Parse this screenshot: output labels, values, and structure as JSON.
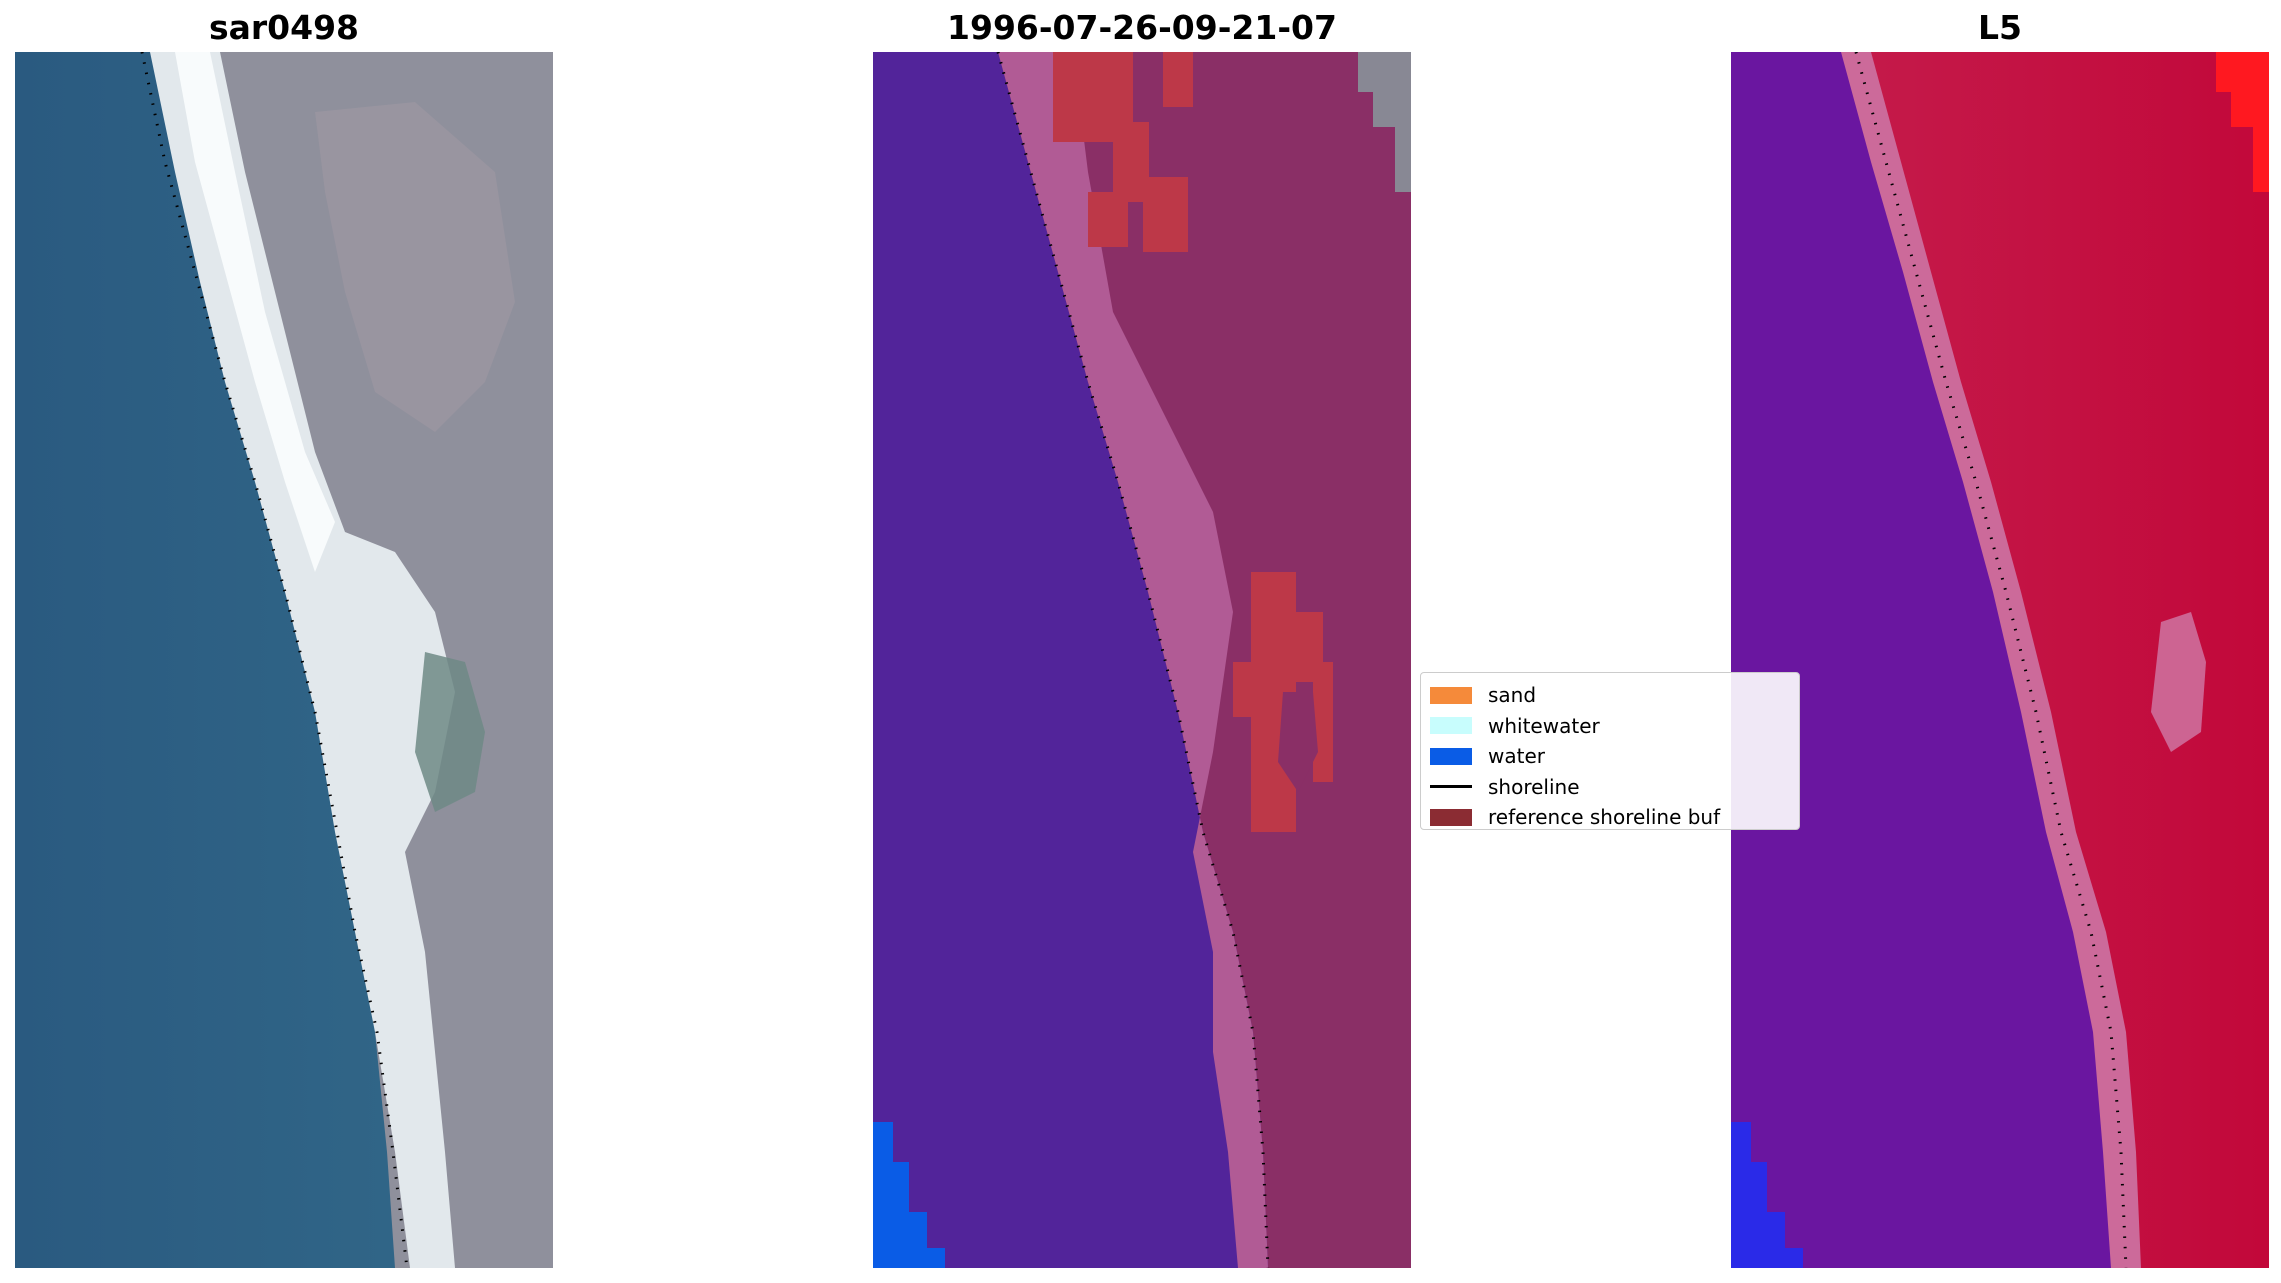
{
  "panels": [
    {
      "title": "sar0498"
    },
    {
      "title": "1996-07-26-09-21-07"
    },
    {
      "title": "L5"
    }
  ],
  "legend": {
    "items": [
      {
        "label": "sand",
        "color": "#f58a3a"
      },
      {
        "label": "whitewater",
        "color": "#c8fdfd"
      },
      {
        "label": "water",
        "color": "#0a5ce6"
      },
      {
        "label": "shoreline",
        "color": "#000000"
      },
      {
        "label": "reference shoreline buf",
        "color": "#8b2c33"
      }
    ]
  },
  "colors": {
    "rgb_water": "#2e5f82",
    "rgb_whitewater": "#f2f6f7",
    "rgb_land": "#8d8f9c",
    "class_water": "#52249a",
    "class_land": "#8a2f66",
    "class_sand_band": "#b15b95",
    "class_buffer_patch": "#bd3848",
    "class_gray_corner": "#888894",
    "class_water_blue": "#0a5ce6",
    "index_water": "#6a16a0",
    "index_land": "#c20a3a",
    "index_band": "#cc6a9a",
    "index_bright_red": "#ff1820",
    "index_blue": "#2a2ae8"
  }
}
